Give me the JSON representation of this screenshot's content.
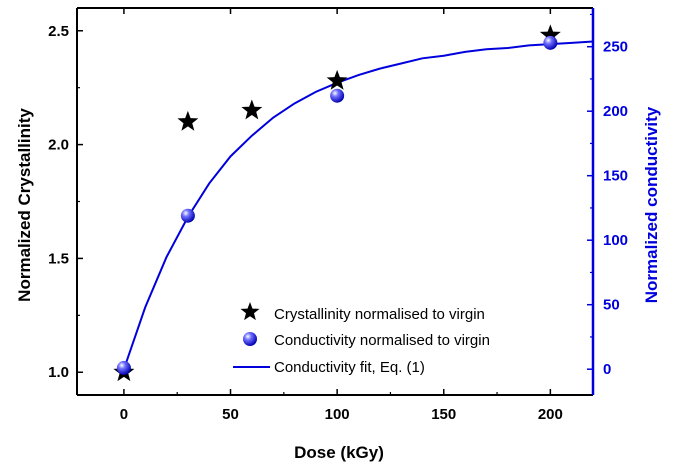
{
  "chart_data": {
    "type": "scatter",
    "xlabel": "Dose (kGy)",
    "ylabel_left": "Normalized Crystallinity",
    "ylabel_right": "Normalized conductivity",
    "xlim": [
      -22,
      220
    ],
    "ylim_left": [
      0.9,
      2.6
    ],
    "ylim_right": [
      -20,
      280
    ],
    "x_ticks": [
      0,
      50,
      100,
      150,
      200
    ],
    "y_left_ticks": [
      1.0,
      1.5,
      2.0,
      2.5
    ],
    "y_left_tick_labels": [
      "1.0",
      "1.5",
      "2.0",
      "2.5"
    ],
    "y_right_ticks": [
      0,
      50,
      100,
      150,
      200,
      250
    ],
    "grid": false,
    "legend_position": "lower-right",
    "series": [
      {
        "name": "Crystallinity normalised to virgin",
        "axis": "left",
        "marker": "star",
        "color": "#000000",
        "x": [
          0,
          30,
          60,
          100,
          200
        ],
        "y": [
          1.0,
          2.1,
          2.15,
          2.28,
          2.48
        ]
      },
      {
        "name": "Conductivity normalised to virgin",
        "axis": "right",
        "marker": "sphere",
        "color": "#1a1aff",
        "x": [
          0,
          30,
          100,
          200
        ],
        "y": [
          1,
          119,
          212,
          253
        ]
      },
      {
        "name": "Conductivity fit, Eq. (1)",
        "axis": "right",
        "marker": "line",
        "color": "#0000dd",
        "x": [
          0,
          10,
          20,
          30,
          40,
          50,
          60,
          70,
          80,
          90,
          100,
          110,
          120,
          130,
          140,
          150,
          160,
          170,
          180,
          190,
          200,
          210,
          220
        ],
        "y": [
          0,
          48,
          87,
          118,
          144,
          165,
          181,
          195,
          206,
          215,
          222,
          228,
          233,
          237,
          241,
          243,
          246,
          248,
          249,
          251,
          252,
          253,
          254
        ]
      }
    ]
  }
}
